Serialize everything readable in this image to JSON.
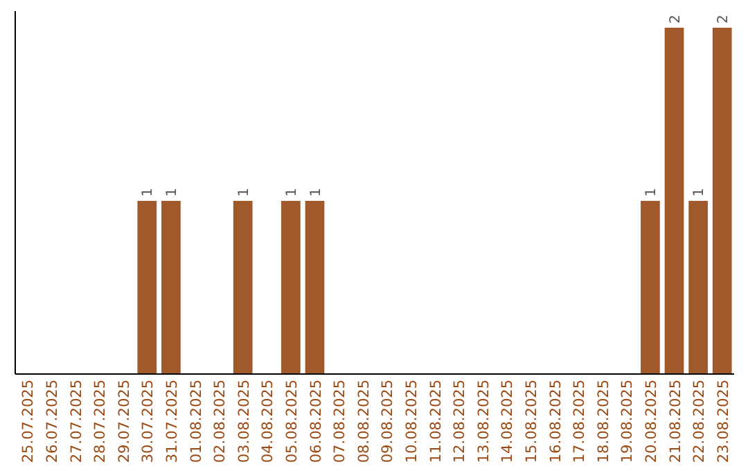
{
  "chart_data": {
    "type": "bar",
    "categories": [
      "25.07.2025",
      "26.07.2025",
      "27.07.2025",
      "28.07.2025",
      "29.07.2025",
      "30.07.2025",
      "31.07.2025",
      "01.08.2025",
      "02.08.2025",
      "03.08.2025",
      "04.08.2025",
      "05.08.2025",
      "06.08.2025",
      "07.08.2025",
      "08.08.2025",
      "09.08.2025",
      "10.08.2025",
      "11.08.2025",
      "12.08.2025",
      "13.08.2025",
      "14.08.2025",
      "15.08.2025",
      "16.08.2025",
      "17.08.2025",
      "18.08.2025",
      "19.08.2025",
      "20.08.2025",
      "21.08.2025",
      "22.08.2025",
      "23.08.2025"
    ],
    "values": [
      0,
      0,
      0,
      0,
      0,
      1,
      1,
      0,
      0,
      1,
      0,
      1,
      1,
      0,
      0,
      0,
      0,
      0,
      0,
      0,
      0,
      0,
      0,
      0,
      0,
      0,
      1,
      2,
      1,
      2
    ],
    "value_labels": [
      null,
      null,
      null,
      null,
      null,
      "1",
      "1",
      null,
      null,
      "1",
      null,
      "1",
      "1",
      null,
      null,
      null,
      null,
      null,
      null,
      null,
      null,
      null,
      null,
      null,
      null,
      null,
      "1",
      "2",
      "1",
      "2"
    ],
    "color": "#a0592a",
    "ylim": [
      0,
      2
    ],
    "tick_labels": "x"
  }
}
